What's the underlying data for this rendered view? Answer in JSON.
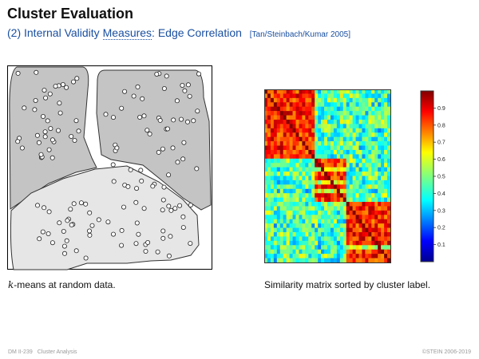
{
  "slide": {
    "title": "Cluster Evaluation",
    "subtitle_prefix": "(2) Internal Validity ",
    "subtitle_link": "Measures",
    "subtitle_suffix": ": Edge Correlation",
    "citation": "[Tan/Steinbach/Kumar 2005]"
  },
  "left_figure": {
    "caption_italic": "k",
    "caption_rest": "-means at random data."
  },
  "right_figure": {
    "caption": "Similarity matrix sorted by cluster label.",
    "colorbar_ticks": [
      "0.1",
      "0.2",
      "0.3",
      "0.4",
      "0.5",
      "0.6",
      "0.7",
      "0.8",
      "0.9"
    ]
  },
  "footer": {
    "page": "DM II-239",
    "section": "Cluster Analysis",
    "copyright": "©STEIN 2006-2019"
  },
  "colors": {
    "title": "#111111",
    "subtitle": "#1a4fa0",
    "cluster_dark": "#c4c4c4",
    "cluster_light": "#e6e6e6",
    "footer": "#9a9a9a"
  }
}
